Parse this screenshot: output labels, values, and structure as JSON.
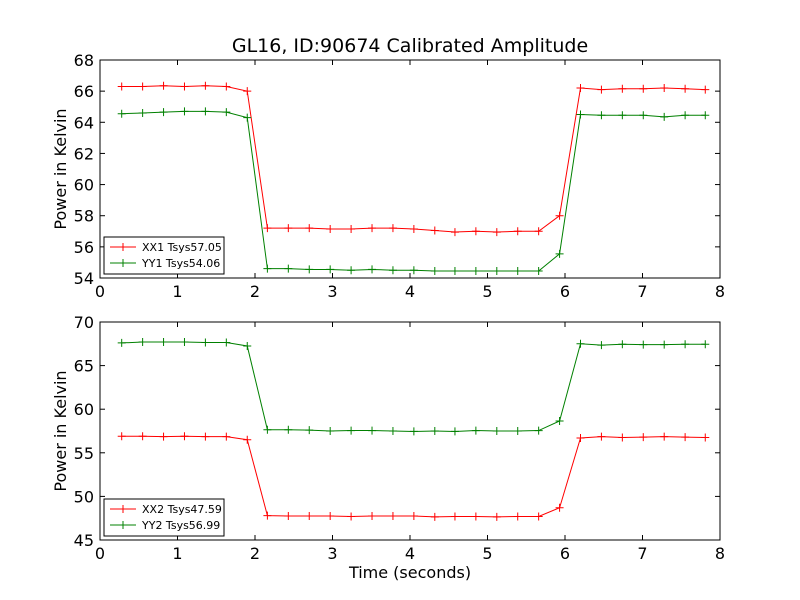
{
  "figure": {
    "title": "GL16, ID:90674 Calibrated Amplitude"
  },
  "colors": {
    "red": "#ff0000",
    "green": "#008000"
  },
  "chart_data": [
    {
      "type": "line",
      "xlabel": "",
      "ylabel": "Power in Kelvin",
      "xlim": [
        0,
        8
      ],
      "ylim": [
        54,
        68
      ],
      "xticks": [
        0,
        1,
        2,
        3,
        4,
        5,
        6,
        7,
        8
      ],
      "yticks": [
        54,
        56,
        58,
        60,
        62,
        64,
        66,
        68
      ],
      "legend": "lower-left",
      "grid": false,
      "x": [
        0.28,
        0.55,
        0.82,
        1.09,
        1.36,
        1.63,
        1.9,
        2.16,
        2.43,
        2.7,
        2.97,
        3.24,
        3.51,
        3.78,
        4.05,
        4.32,
        4.58,
        4.85,
        5.12,
        5.39,
        5.66,
        5.93,
        6.2,
        6.47,
        6.74,
        7.01,
        7.28,
        7.55,
        7.81
      ],
      "series": [
        {
          "name": "XX1 Tsys57.05",
          "color": "#ff0000",
          "values": [
            66.3,
            66.3,
            66.35,
            66.3,
            66.35,
            66.3,
            66.0,
            57.2,
            57.2,
            57.2,
            57.15,
            57.15,
            57.2,
            57.2,
            57.15,
            57.05,
            56.95,
            57.0,
            56.95,
            57.0,
            57.0,
            58.0,
            66.2,
            66.1,
            66.15,
            66.15,
            66.2,
            66.15,
            66.1
          ]
        },
        {
          "name": "YY1 Tsys54.06",
          "color": "#008000",
          "values": [
            64.55,
            64.6,
            64.65,
            64.7,
            64.7,
            64.65,
            64.3,
            54.6,
            54.6,
            54.55,
            54.55,
            54.5,
            54.55,
            54.5,
            54.5,
            54.45,
            54.45,
            54.45,
            54.45,
            54.45,
            54.45,
            55.55,
            64.5,
            64.45,
            64.45,
            64.45,
            64.35,
            64.45,
            64.45
          ]
        }
      ]
    },
    {
      "type": "line",
      "xlabel": "Time (seconds)",
      "ylabel": "Power in Kelvin",
      "xlim": [
        0,
        8
      ],
      "ylim": [
        45,
        70
      ],
      "xticks": [
        0,
        1,
        2,
        3,
        4,
        5,
        6,
        7,
        8
      ],
      "yticks": [
        45,
        50,
        55,
        60,
        65,
        70
      ],
      "legend": "lower-left",
      "grid": false,
      "x": [
        0.28,
        0.55,
        0.82,
        1.09,
        1.36,
        1.63,
        1.9,
        2.16,
        2.43,
        2.7,
        2.97,
        3.24,
        3.51,
        3.78,
        4.05,
        4.32,
        4.58,
        4.85,
        5.12,
        5.39,
        5.66,
        5.93,
        6.2,
        6.47,
        6.74,
        7.01,
        7.28,
        7.55,
        7.81
      ],
      "series": [
        {
          "name": "XX2 Tsys47.59",
          "color": "#ff0000",
          "values": [
            56.9,
            56.9,
            56.85,
            56.9,
            56.85,
            56.85,
            56.5,
            47.8,
            47.75,
            47.75,
            47.75,
            47.7,
            47.75,
            47.75,
            47.75,
            47.65,
            47.7,
            47.7,
            47.65,
            47.7,
            47.7,
            48.7,
            56.7,
            56.85,
            56.75,
            56.8,
            56.85,
            56.8,
            56.75
          ]
        },
        {
          "name": "YY2 Tsys56.99",
          "color": "#008000",
          "values": [
            67.6,
            67.7,
            67.7,
            67.7,
            67.65,
            67.65,
            67.25,
            57.65,
            57.65,
            57.6,
            57.5,
            57.55,
            57.55,
            57.5,
            57.45,
            57.5,
            57.45,
            57.55,
            57.5,
            57.5,
            57.55,
            58.65,
            67.5,
            67.35,
            67.45,
            67.4,
            67.4,
            67.45,
            67.45
          ]
        }
      ]
    }
  ]
}
